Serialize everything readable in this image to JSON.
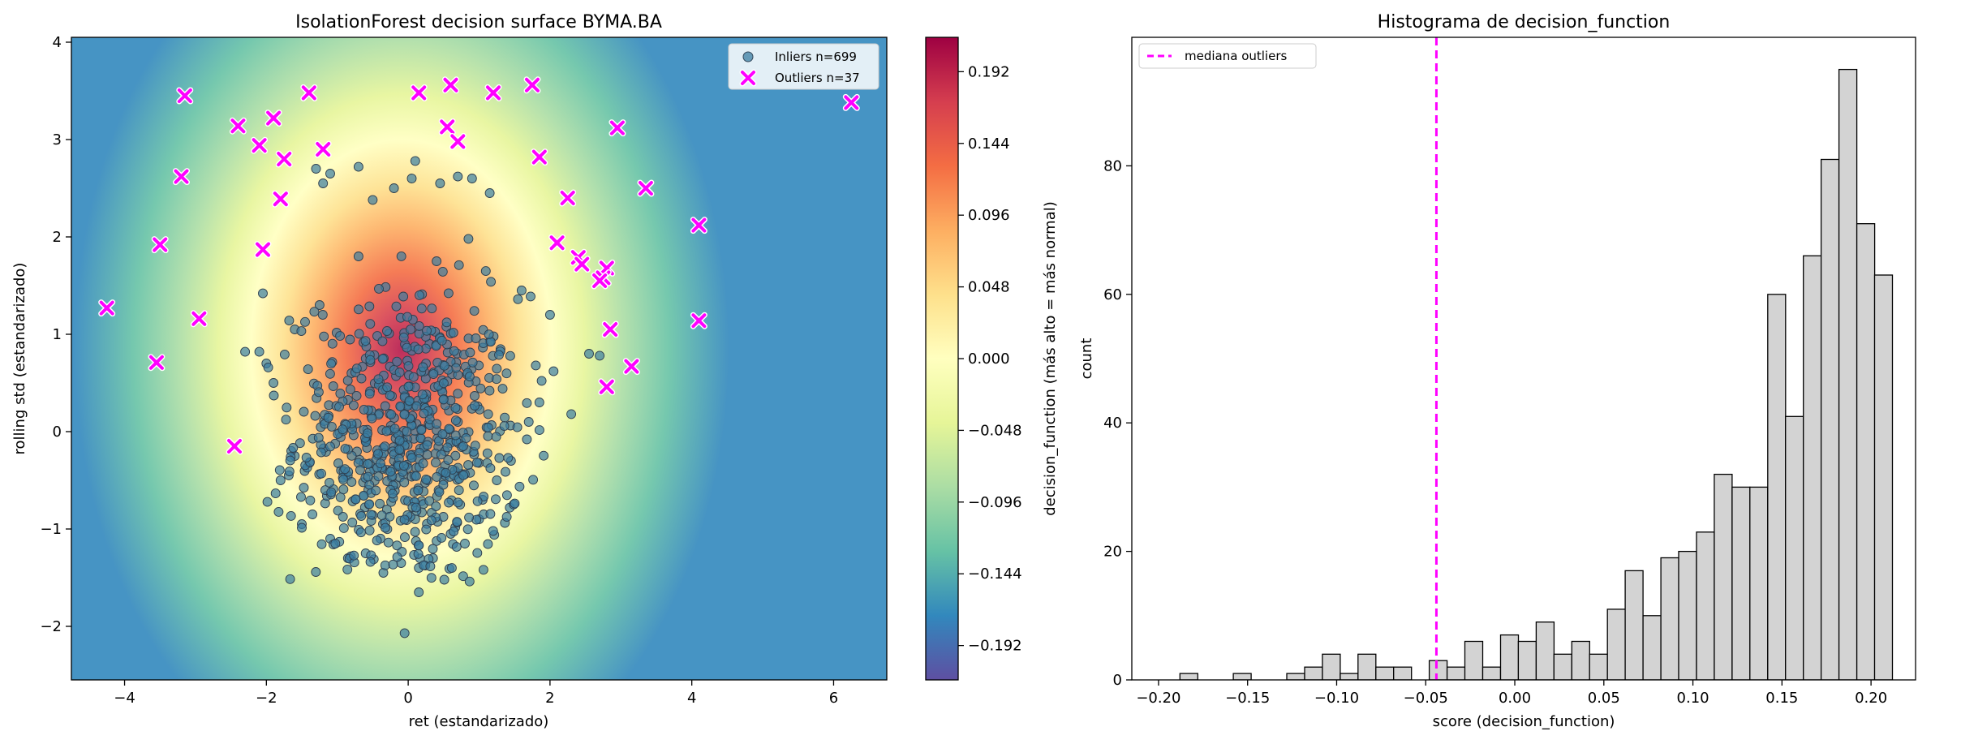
{
  "chart_data": [
    {
      "type": "scatter",
      "title": "IsolationForest decision surface BYMA.BA",
      "xlabel": "ret (estandarizado)",
      "ylabel": "rolling std (estandarizado)",
      "xlim": [
        -4.75,
        6.75
      ],
      "ylim": [
        -2.55,
        4.05
      ],
      "xticks": [
        -4,
        -2,
        0,
        2,
        4,
        6
      ],
      "yticks": [
        -2,
        -1,
        0,
        1,
        2,
        3,
        4
      ],
      "legend_position": "upper right",
      "background": "decision_function contour (Spectral colormap)",
      "series": [
        {
          "name": "Inliers n=699",
          "color": "#3b7ea1",
          "marker": "circle",
          "count": 699,
          "distribution": {
            "x_mean": 0.0,
            "x_std": 0.8,
            "y_mean": -0.1,
            "y_std": 0.75
          },
          "points": [
            [
              -2.3,
              0.82
            ],
            [
              -2.1,
              0.82
            ],
            [
              -2.0,
              0.7
            ],
            [
              -1.9,
              0.5
            ],
            [
              -2.05,
              1.42
            ],
            [
              -1.6,
              1.05
            ],
            [
              -1.25,
              1.3
            ],
            [
              -1.3,
              2.7
            ],
            [
              -1.1,
              2.65
            ],
            [
              -1.2,
              2.55
            ],
            [
              -0.7,
              2.72
            ],
            [
              -0.5,
              2.38
            ],
            [
              -0.2,
              2.5
            ],
            [
              0.05,
              2.6
            ],
            [
              0.1,
              2.78
            ],
            [
              0.45,
              2.55
            ],
            [
              0.7,
              2.62
            ],
            [
              0.9,
              2.6
            ],
            [
              1.15,
              2.45
            ],
            [
              0.85,
              1.98
            ],
            [
              -0.7,
              1.8
            ],
            [
              0.4,
              1.75
            ],
            [
              -1.8,
              -0.5
            ],
            [
              -1.6,
              -0.25
            ],
            [
              -1.5,
              -0.95
            ],
            [
              -1.35,
              -0.85
            ],
            [
              -1.1,
              -1.1
            ],
            [
              -0.85,
              -1.3
            ],
            [
              -0.6,
              -1.25
            ],
            [
              -0.35,
              -1.45
            ],
            [
              -0.1,
              -1.35
            ],
            [
              0.15,
              -1.4
            ],
            [
              0.35,
              -1.3
            ],
            [
              0.6,
              -1.05
            ],
            [
              0.8,
              -1.15
            ],
            [
              1.0,
              -0.9
            ],
            [
              1.25,
              -0.5
            ],
            [
              1.45,
              -0.3
            ],
            [
              1.7,
              0.1
            ],
            [
              1.85,
              0.3
            ],
            [
              2.05,
              0.62
            ],
            [
              2.3,
              0.18
            ],
            [
              2.55,
              0.8
            ],
            [
              2.7,
              0.78
            ],
            [
              1.05,
              -0.7
            ],
            [
              -0.05,
              -2.07
            ],
            [
              0.15,
              -1.65
            ],
            [
              1.8,
              0.68
            ],
            [
              2.0,
              1.2
            ],
            [
              1.6,
              1.45
            ],
            [
              -0.4,
              0.5
            ],
            [
              0.2,
              0.3
            ],
            [
              -0.2,
              -0.3
            ],
            [
              0.5,
              -0.5
            ],
            [
              -0.6,
              -0.1
            ],
            [
              0.3,
              0.9
            ],
            [
              -0.8,
              0.6
            ],
            [
              0.7,
              0.1
            ],
            [
              -0.3,
              -0.8
            ],
            [
              0.1,
              -0.9
            ]
          ]
        },
        {
          "name": "Outliers n=37",
          "color": "#ff00ff",
          "marker": "x",
          "count": 37,
          "points": [
            [
              -3.15,
              3.45
            ],
            [
              -1.4,
              3.48
            ],
            [
              0.15,
              3.48
            ],
            [
              0.6,
              3.56
            ],
            [
              1.2,
              3.48
            ],
            [
              1.75,
              3.56
            ],
            [
              6.25,
              3.38
            ],
            [
              -2.4,
              3.14
            ],
            [
              -1.9,
              3.22
            ],
            [
              -2.1,
              2.94
            ],
            [
              -1.2,
              2.9
            ],
            [
              -1.75,
              2.8
            ],
            [
              0.55,
              3.13
            ],
            [
              0.7,
              2.98
            ],
            [
              2.95,
              3.12
            ],
            [
              1.85,
              2.82
            ],
            [
              -3.2,
              2.62
            ],
            [
              -1.8,
              2.39
            ],
            [
              2.25,
              2.4
            ],
            [
              3.35,
              2.5
            ],
            [
              4.1,
              2.12
            ],
            [
              -3.5,
              1.92
            ],
            [
              -2.05,
              1.87
            ],
            [
              2.1,
              1.94
            ],
            [
              2.4,
              1.79
            ],
            [
              2.45,
              1.72
            ],
            [
              2.8,
              1.68
            ],
            [
              2.75,
              1.58
            ],
            [
              -4.25,
              1.27
            ],
            [
              -2.95,
              1.16
            ],
            [
              2.85,
              1.05
            ],
            [
              4.1,
              1.14
            ],
            [
              -3.55,
              0.71
            ],
            [
              3.15,
              0.67
            ],
            [
              2.8,
              0.46
            ],
            [
              -2.45,
              -0.15
            ],
            [
              2.7,
              1.55
            ]
          ]
        }
      ],
      "colorbar": {
        "label": "decision_function (más alto = más normal)",
        "range": [
          -0.215,
          0.215
        ],
        "ticks": [
          "0.192",
          "0.144",
          "0.096",
          "0.048",
          "0.000",
          "−0.048",
          "−0.096",
          "−0.144",
          "−0.192"
        ],
        "tick_values": [
          0.192,
          0.144,
          0.096,
          0.048,
          0.0,
          -0.048,
          -0.096,
          -0.144,
          -0.192
        ],
        "colormap": [
          "#5e4fa2",
          "#3288bd",
          "#66c2a5",
          "#abdda4",
          "#e6f598",
          "#ffffbf",
          "#fee08b",
          "#fdae61",
          "#f46d43",
          "#d53e4f",
          "#9e0142"
        ]
      }
    },
    {
      "type": "bar",
      "title": "Histograma de decision_function",
      "xlabel": "score (decision_function)",
      "ylabel": "count",
      "xlim": [
        -0.215,
        0.225
      ],
      "ylim": [
        0,
        100
      ],
      "xticks": [
        -0.2,
        -0.15,
        -0.1,
        -0.05,
        0.0,
        0.05,
        0.1,
        0.15,
        0.2
      ],
      "xtick_labels": [
        "−0.20",
        "−0.15",
        "−0.10",
        "−0.05",
        "0.00",
        "0.05",
        "0.10",
        "0.15",
        "0.20"
      ],
      "yticks": [
        0,
        20,
        40,
        60,
        80
      ],
      "bin_start": -0.188,
      "bin_width": 0.01,
      "values": [
        1,
        0,
        0,
        1,
        0,
        0,
        1,
        2,
        4,
        1,
        4,
        2,
        2,
        0,
        3,
        2,
        6,
        2,
        7,
        6,
        9,
        4,
        6,
        4,
        11,
        17,
        10,
        19,
        20,
        23,
        32,
        30,
        30,
        60,
        41,
        66,
        81,
        95,
        71,
        63
      ],
      "bar_color": "#d3d3d3",
      "edge_color": "#000000",
      "reference_line": {
        "label": "mediana outliers",
        "x": -0.044,
        "color": "#ff00ff",
        "style": "dashed"
      },
      "legend_position": "upper left"
    }
  ]
}
